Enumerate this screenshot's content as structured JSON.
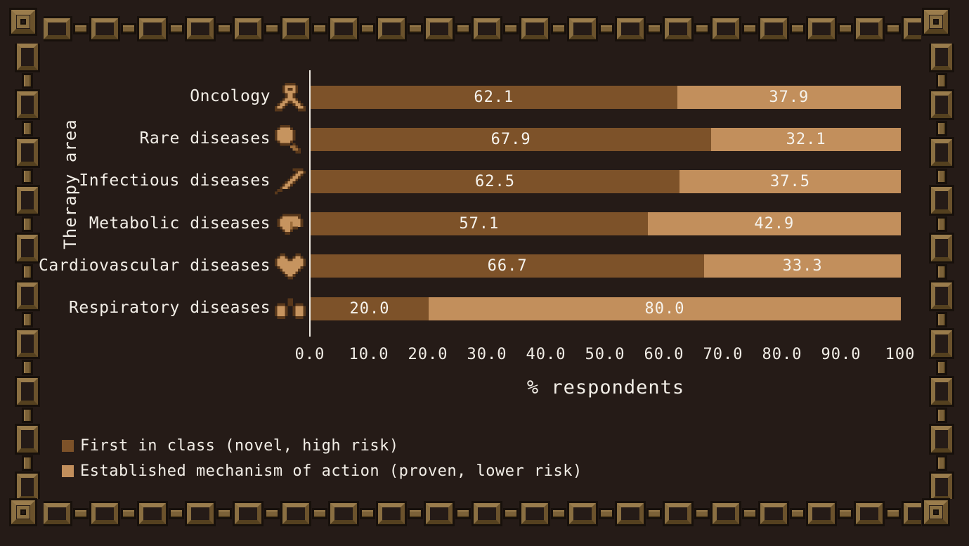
{
  "theme": {
    "background": "#251b17",
    "text": "#f2eee7",
    "bar_dark": "#7d5229",
    "bar_light": "#c28f5c",
    "chain": "#8a6f42"
  },
  "chart_data": {
    "type": "bar",
    "stacked": true,
    "orientation": "horizontal",
    "title": "",
    "xlabel": "% respondents",
    "ylabel": "Therapy area",
    "xlim": [
      0,
      100
    ],
    "grid": false,
    "legend_position": "bottom-left",
    "categories": [
      "Oncology",
      "Rare diseases",
      "Infectious diseases",
      "Metabolic diseases",
      "Cardiovascular diseases",
      "Respiratory diseases"
    ],
    "category_icons": [
      "ribbon-icon",
      "magnifier-icon",
      "syringe-icon",
      "liver-icon",
      "heart-icon",
      "lungs-icon"
    ],
    "series": [
      {
        "name": "First in class (novel, high risk)",
        "color": "#7d5229",
        "values": [
          62.1,
          67.9,
          62.5,
          57.1,
          66.7,
          20.0
        ],
        "value_labels": [
          "62.1",
          "67.9",
          "62.5",
          "57.1",
          "66.7",
          "20.0"
        ]
      },
      {
        "name": "Established mechanism of action (proven, lower risk)",
        "color": "#c28f5c",
        "values": [
          37.9,
          32.1,
          37.5,
          42.9,
          33.3,
          80.0
        ],
        "value_labels": [
          "37.9",
          "32.1",
          "37.5",
          "42.9",
          "33.3",
          "80.0"
        ]
      }
    ],
    "xticks": [
      0,
      10,
      20,
      30,
      40,
      50,
      60,
      70,
      80,
      90,
      100
    ],
    "xtick_labels": [
      "0.0",
      "10.0",
      "20.0",
      "30.0",
      "40.0",
      "50.0",
      "60.0",
      "70.0",
      "80.0",
      "90.0",
      "100"
    ]
  }
}
